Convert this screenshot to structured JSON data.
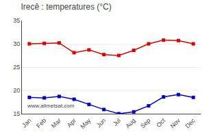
{
  "chart_data": {
    "type": "line",
    "title": "Irecê : temperatures (°C)",
    "categories": [
      "Jan",
      "Feb",
      "Mar",
      "Apr",
      "May",
      "Jun",
      "Jul",
      "Aug",
      "Sep",
      "Oct",
      "Nov",
      "Dec"
    ],
    "series": [
      {
        "color": "#dd0000",
        "marker": "square",
        "line_style": "solid",
        "values": [
          30.0,
          30.1,
          30.2,
          28.1,
          28.7,
          27.7,
          27.5,
          28.6,
          30.0,
          30.8,
          30.7,
          30.0
        ]
      },
      {
        "color": "#0000cc",
        "marker": "square",
        "line_style": "solid",
        "values": [
          18.5,
          18.4,
          18.7,
          18.1,
          17.0,
          15.9,
          15.0,
          15.4,
          16.7,
          18.6,
          19.1,
          18.5
        ]
      }
    ],
    "ylim": [
      15,
      35
    ],
    "yticks": [
      15,
      20,
      25,
      30,
      35
    ],
    "grid": true,
    "annotations": [
      "www.allmetsat.com"
    ]
  }
}
